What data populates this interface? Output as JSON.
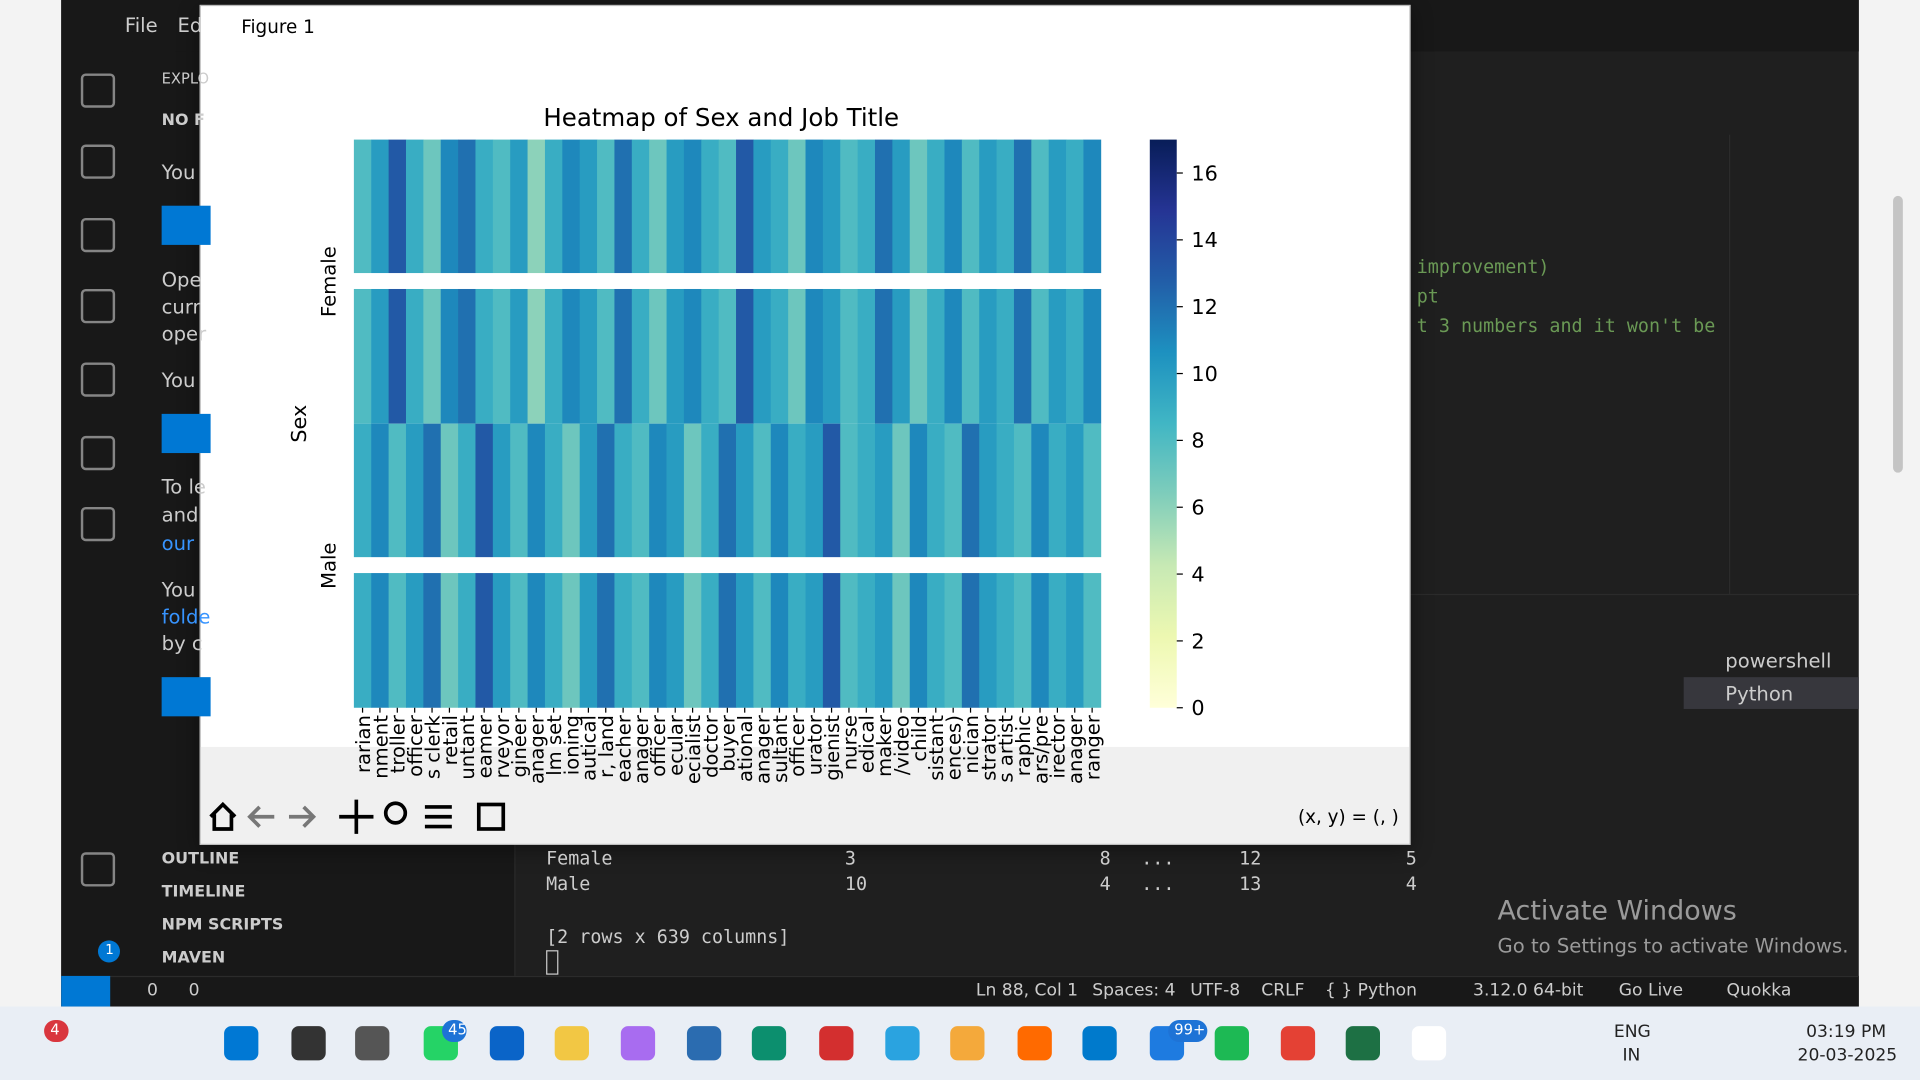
{
  "vscode": {
    "menu": [
      "File",
      "Ed"
    ],
    "sidebar": {
      "header": "EXPLO",
      "section": "NO F",
      "texts": [
        "You",
        "Ope",
        "curr",
        "oper",
        "You",
        "To le",
        "and",
        "our",
        "You",
        "folde",
        "by c"
      ],
      "panels": [
        "OUTLINE",
        "TIMELINE",
        "NPM SCRIPTS",
        "MAVEN"
      ],
      "settings_badge": "1"
    },
    "editor": {
      "lines": [
        "improvement)",
        "pt",
        "t 3 numbers and it won't be"
      ]
    },
    "terminal": {
      "rows": [
        [
          "Female",
          3,
          8,
          "...",
          12,
          5
        ],
        [
          "Male",
          10,
          4,
          "...",
          13,
          4
        ]
      ],
      "summary": "[2 rows x 639 columns]",
      "tabs": [
        "powershell",
        "Python"
      ]
    },
    "status_bar": {
      "errors": 0,
      "warnings": 0,
      "items": [
        "Ln 88, Col 1",
        "Spaces: 4",
        "UTF-8",
        "CRLF",
        "{ } Python",
        "3.12.0 64-bit",
        "Go Live",
        "Quokka"
      ]
    }
  },
  "figure": {
    "window_title": "Figure 1",
    "coordinates": "(x, y) = (, )",
    "chart_data": {
      "type": "heatmap",
      "title": "Heatmap of Sex and Job Title",
      "ylabel": "Sex",
      "rows": [
        "Female",
        "Male"
      ],
      "categories": [
        "rarian",
        "nment",
        "troller",
        "officer",
        "s clerk",
        "retail",
        "untant",
        "eamer",
        "rveyor",
        "gineer",
        "anager",
        "lm set",
        "ioning",
        "autical",
        "r, land",
        "eacher",
        "anager",
        "officer",
        "ecular",
        "ecialist",
        "doctor",
        "buyer",
        "ational",
        "anager",
        "sultant",
        "officer",
        "urator",
        "gienist",
        "nurse",
        "edical",
        "maker",
        "/video",
        "child",
        "sistant",
        "ences)",
        "nician",
        "strator",
        "s artist",
        "raphic",
        "ars/pre",
        "irector",
        "anager",
        "ranger"
      ],
      "values": [
        [
          8,
          10,
          13,
          9,
          7,
          11,
          12,
          9,
          8,
          10,
          6,
          9,
          11,
          10,
          8,
          12,
          9,
          7,
          10,
          11,
          9,
          8,
          13,
          10,
          9,
          7,
          11,
          10,
          8,
          9,
          12,
          10,
          7,
          9,
          11,
          8,
          10,
          9,
          12,
          8,
          10,
          9,
          11
        ],
        [
          9,
          11,
          8,
          10,
          12,
          7,
          9,
          13,
          10,
          8,
          11,
          9,
          7,
          10,
          12,
          9,
          8,
          11,
          10,
          7,
          9,
          12,
          10,
          8,
          11,
          9,
          10,
          13,
          8,
          9,
          10,
          7,
          11,
          9,
          8,
          12,
          10,
          9,
          8,
          11,
          9,
          10,
          8
        ]
      ],
      "colormap": "YlGnBu",
      "clim": [
        0,
        17
      ],
      "cticks": [
        0,
        2,
        4,
        6,
        8,
        10,
        12,
        14,
        16
      ]
    }
  },
  "watermark": {
    "title": "Activate Windows",
    "text": "Go to Settings to activate Windows."
  },
  "taskbar": {
    "badges": [
      "4",
      "45",
      "99+"
    ],
    "language": [
      "ENG",
      "IN"
    ],
    "time": "03:19 PM",
    "date": "20-03-2025"
  }
}
